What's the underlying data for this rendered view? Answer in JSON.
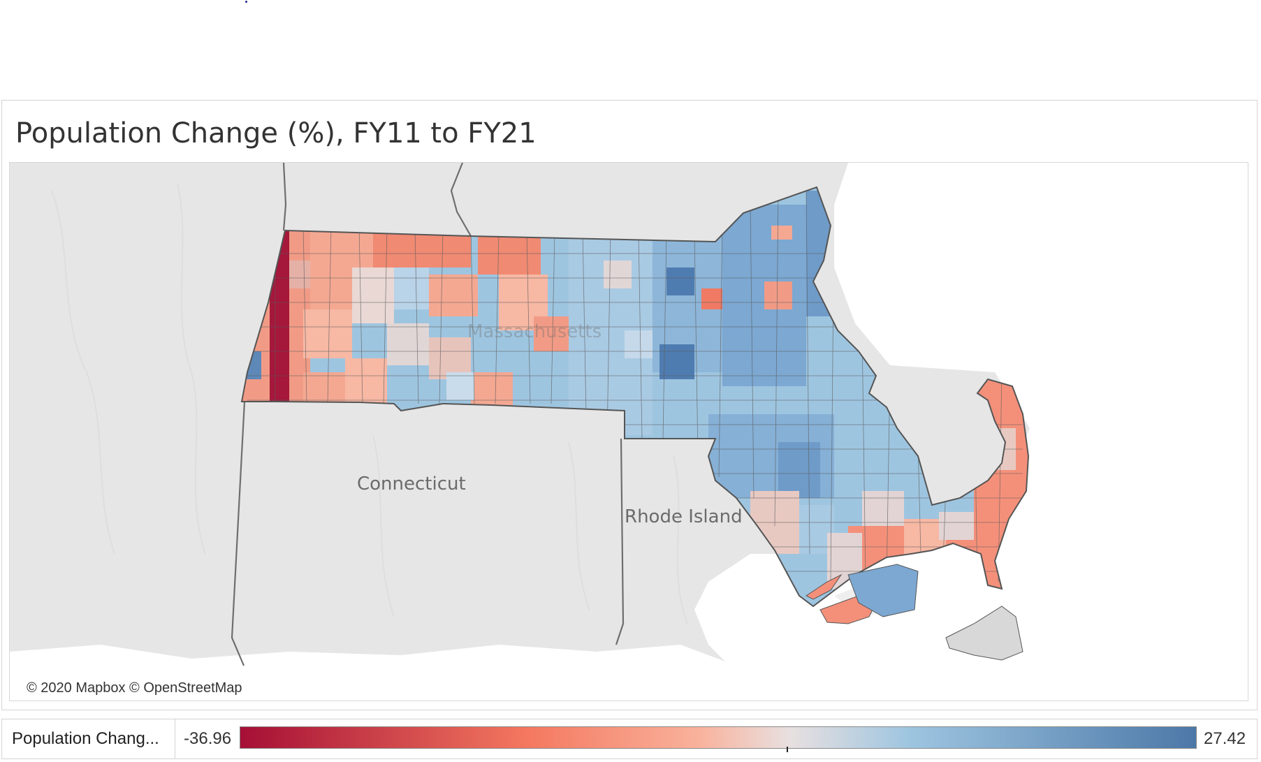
{
  "title": "Population Change (%), FY11 to FY21",
  "map": {
    "labels": {
      "ma": "Massachusetts",
      "ct": "Connecticut",
      "ri": "Rhode Island"
    },
    "attribution": "© 2020 Mapbox © OpenStreetMap"
  },
  "legend": {
    "name": "Population Chang...",
    "min": "-36.96",
    "max": "27.42",
    "colors": {
      "low": "#a50f35",
      "mid_low": "#f4785f",
      "mid": "#e8e0e0",
      "mid_high": "#9ec5e0",
      "high": "#4c78a8"
    }
  }
}
